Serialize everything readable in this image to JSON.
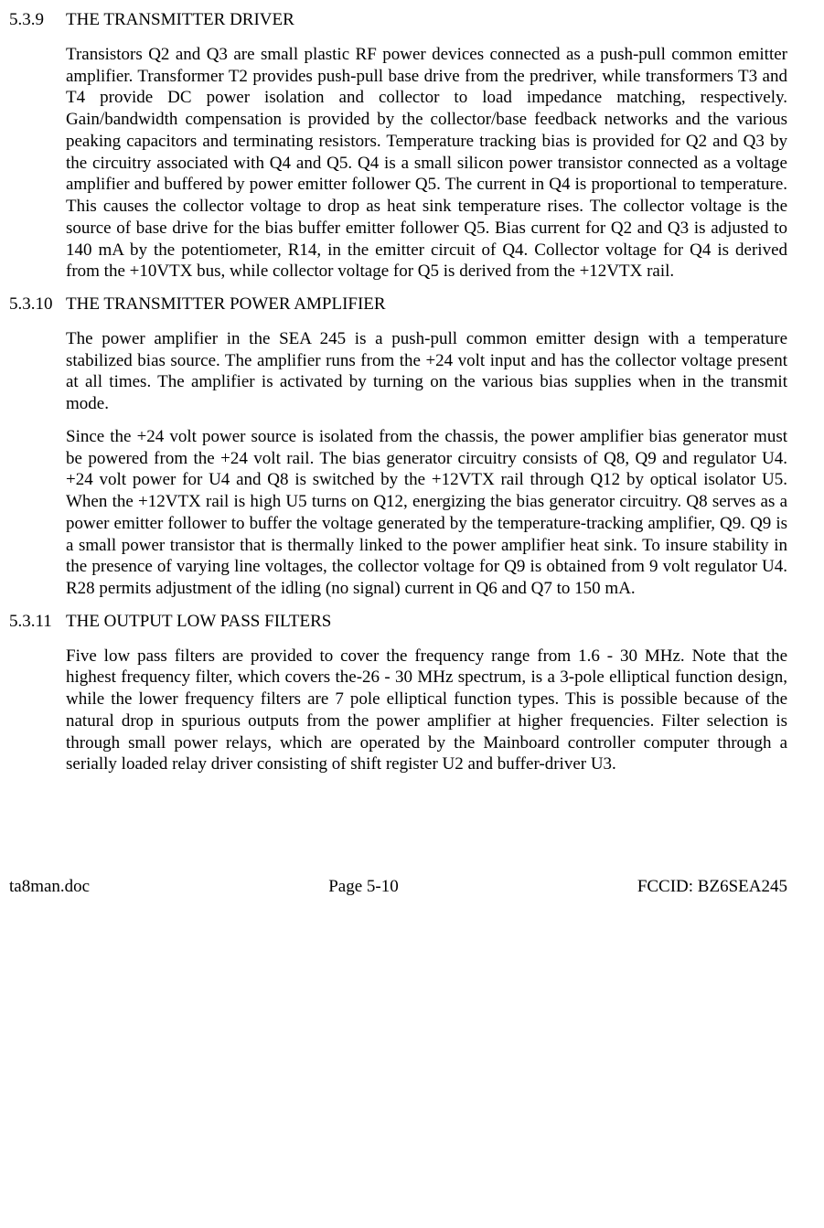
{
  "sections": [
    {
      "num": "5.3.9",
      "title": "THE TRANSMITTER DRIVER",
      "paras": [
        "Transistors Q2 and Q3 are small plastic RF power devices connected as a push-pull common emitter amplifier.  Transformer T2 provides push-pull base drive from the predriver, while transformers T3 and T4 provide DC power isolation and collector to load impedance matching, respectively.  Gain/bandwidth compensation is provided by the collector/base feedback networks and the various peaking capacitors and terminating resistors.  Temperature tracking bias is provided for Q2 and Q3 by the circuitry associated with Q4 and Q5.  Q4 is a small silicon power transistor connected as a voltage amplifier and buffered by power emitter follower Q5.  The current in Q4 is proportional to temperature.  This causes the collector voltage to drop as heat sink temperature rises.  The collector voltage is the source of base drive for the bias buffer emitter follower Q5.  Bias current for Q2 and Q3 is adjusted to 140 mA by the potentiometer, R14, in the emitter circuit of Q4.  Collector voltage for Q4 is derived from the +10VTX bus, while collector voltage for Q5 is derived from the +12VTX rail."
      ]
    },
    {
      "num": "5.3.10",
      "title": "THE TRANSMITTER POWER AMPLIFIER",
      "paras": [
        "The power amplifier in the SEA 245 is a push-pull common emitter design with a temperature stabilized bias source.  The amplifier runs from the +24 volt input and has the collector voltage present at all times.  The amplifier is activated by turning on the various bias supplies when in the transmit mode.",
        "Since the +24 volt power source is isolated from the chassis, the power amplifier bias generator must be powered from the +24 volt rail.  The bias generator circuitry consists of Q8, Q9 and regulator U4.  +24 volt power for U4 and Q8 is switched by the +12VTX rail through Q12 by optical isolator U5.  When the +12VTX rail is high U5 turns on Q12, energizing the bias generator circuitry.  Q8 serves as a power emitter follower to buffer the voltage generated by the temperature-tracking amplifier, Q9.  Q9 is a small power transistor that is thermally linked to the power amplifier heat sink.  To insure stability in the presence of varying line voltages, the collector voltage for Q9 is obtained from 9 volt regulator U4.  R28 permits adjustment of the idling (no signal) current in Q6 and Q7 to 150 mA."
      ]
    },
    {
      "num": "5.3.11",
      "title": "THE OUTPUT LOW PASS FILTERS",
      "paras": [
        "Five low pass filters are provided to cover the frequency range from 1.6 - 30 MHz.  Note that the highest frequency filter, which covers the-26 - 30 MHz spectrum, is a 3-pole elliptical function design, while the lower frequency filters are 7 pole elliptical function types.  This is possible because of the natural drop in spurious outputs from the power amplifier at higher frequencies.  Filter selection is through small power relays, which are operated by the Mainboard controller computer through a serially loaded relay driver consisting of shift register U2 and buffer-driver U3."
      ]
    }
  ],
  "footer": {
    "left": "ta8man.doc",
    "center": "Page 5-10",
    "right": "FCCID: BZ6SEA245"
  }
}
